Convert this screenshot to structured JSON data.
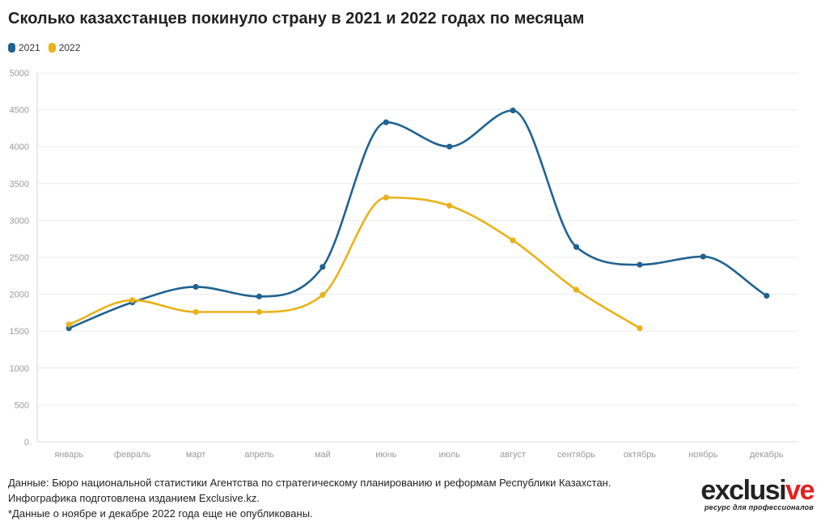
{
  "header": {
    "title": "Сколько казахстанцев покинуло страну в 2021 и 2022 годах по месяцам"
  },
  "legend": [
    {
      "label": "2021",
      "color": "#1f6391"
    },
    {
      "label": "2022",
      "color": "#e9b219"
    }
  ],
  "chart_data": {
    "type": "line",
    "x": [
      "январь",
      "февраль",
      "март",
      "апрель",
      "май",
      "июнь",
      "июль",
      "август",
      "сентябрь",
      "октябрь",
      "ноябрь",
      "декабрь"
    ],
    "series": [
      {
        "name": "2021",
        "color": "#1f6391",
        "values": [
          1540,
          1890,
          2100,
          1970,
          2370,
          4330,
          4000,
          4490,
          2640,
          2400,
          2510,
          1980
        ]
      },
      {
        "name": "2022",
        "color": "#e9b219",
        "values": [
          1590,
          1920,
          1760,
          1760,
          1990,
          3310,
          3200,
          2730,
          2060,
          1540,
          null,
          null
        ]
      }
    ],
    "ylim": [
      0,
      5000
    ],
    "yticks": [
      "0",
      "500",
      "1000",
      "1500",
      "2000",
      "2500",
      "3000",
      "3500",
      "4000",
      "4500",
      "5000"
    ],
    "grid": true,
    "legend_position": "top-left"
  },
  "footer": {
    "source": "Данные: Бюро национальной статистики Агентства по стратегическому планированию и реформам Республики Казахстан.",
    "credit": "Инфографика подготовлена изданием Exclusive.kz.",
    "note": "*Данные о ноябре и декабре 2022 года еще не опубликованы."
  },
  "logo": {
    "word_main": "exclusi",
    "word_accent": "ve",
    "tagline": "ресурс для профессионалов"
  }
}
